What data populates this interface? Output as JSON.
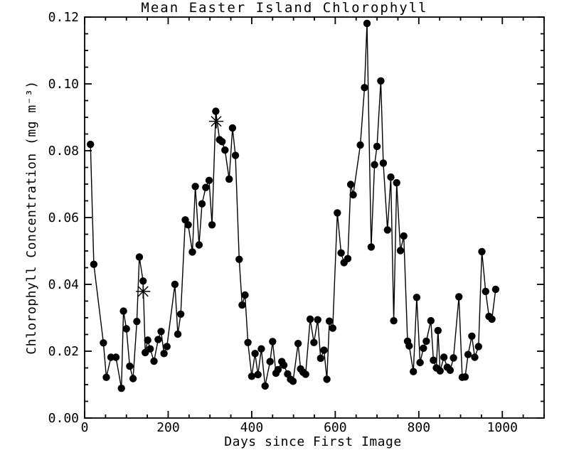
{
  "chart_data": {
    "type": "line",
    "title": "Mean Easter Island Chlorophyll",
    "xlabel": "Days since First Image",
    "ylabel": "Chlorophyll Concentration (mg m⁻³)",
    "xlim": [
      0,
      1100
    ],
    "ylim": [
      0,
      0.12
    ],
    "x_major_ticks": [
      0,
      200,
      400,
      600,
      800,
      1000
    ],
    "x_minor_step": 50,
    "y_major_ticks": [
      0,
      0.02,
      0.04,
      0.06,
      0.08,
      0.1,
      0.12
    ],
    "y_minor_step": 0.005,
    "grid": false,
    "legend": "none",
    "marker": "filled-circle",
    "marker_color": "#000000",
    "line_color": "#000000",
    "axis_color": "#000000",
    "background": "#ffffff",
    "series": [
      {
        "name": "mean-chlorophyll",
        "points": [
          [
            14,
            0.0819
          ],
          [
            22,
            0.046
          ],
          [
            45,
            0.0225
          ],
          [
            52,
            0.0122
          ],
          [
            63,
            0.0182
          ],
          [
            75,
            0.0182
          ],
          [
            88,
            0.0089
          ],
          [
            93,
            0.032
          ],
          [
            100,
            0.0267
          ],
          [
            108,
            0.0155
          ],
          [
            116,
            0.0118
          ],
          [
            125,
            0.0289
          ],
          [
            131,
            0.0482
          ],
          [
            140,
            0.041
          ],
          [
            145,
            0.0196
          ],
          [
            151,
            0.0233
          ],
          [
            157,
            0.0207
          ],
          [
            166,
            0.017
          ],
          [
            176,
            0.0235
          ],
          [
            183,
            0.0259
          ],
          [
            190,
            0.0193
          ],
          [
            197,
            0.0214
          ],
          [
            216,
            0.04
          ],
          [
            223,
            0.0251
          ],
          [
            230,
            0.0311
          ],
          [
            241,
            0.0593
          ],
          [
            248,
            0.0578
          ],
          [
            258,
            0.0497
          ],
          [
            265,
            0.0693
          ],
          [
            274,
            0.0518
          ],
          [
            281,
            0.0641
          ],
          [
            290,
            0.069
          ],
          [
            298,
            0.0711
          ],
          [
            305,
            0.0578
          ],
          [
            314,
            0.0918
          ],
          [
            323,
            0.0833
          ],
          [
            329,
            0.0827
          ],
          [
            336,
            0.0802
          ],
          [
            346,
            0.0715
          ],
          [
            354,
            0.0868
          ],
          [
            361,
            0.0786
          ],
          [
            370,
            0.0475
          ],
          [
            377,
            0.0338
          ],
          [
            384,
            0.0368
          ],
          [
            391,
            0.0226
          ],
          [
            400,
            0.0125
          ],
          [
            408,
            0.0193
          ],
          [
            415,
            0.013
          ],
          [
            423,
            0.0207
          ],
          [
            432,
            0.0096
          ],
          [
            444,
            0.0169
          ],
          [
            450,
            0.0229
          ],
          [
            458,
            0.0134
          ],
          [
            463,
            0.0145
          ],
          [
            472,
            0.0169
          ],
          [
            477,
            0.0158
          ],
          [
            486,
            0.0132
          ],
          [
            493,
            0.0116
          ],
          [
            499,
            0.011
          ],
          [
            511,
            0.0223
          ],
          [
            517,
            0.0147
          ],
          [
            523,
            0.0137
          ],
          [
            529,
            0.0131
          ],
          [
            540,
            0.0296
          ],
          [
            549,
            0.0226
          ],
          [
            558,
            0.0294
          ],
          [
            565,
            0.0179
          ],
          [
            573,
            0.0203
          ],
          [
            580,
            0.0116
          ],
          [
            586,
            0.029
          ],
          [
            594,
            0.0269
          ],
          [
            605,
            0.0614
          ],
          [
            614,
            0.0494
          ],
          [
            621,
            0.0465
          ],
          [
            630,
            0.0477
          ],
          [
            637,
            0.0699
          ],
          [
            643,
            0.0668
          ],
          [
            660,
            0.0817
          ],
          [
            670,
            0.0989
          ],
          [
            676,
            0.1181
          ],
          [
            686,
            0.0512
          ],
          [
            694,
            0.0758
          ],
          [
            700,
            0.0813
          ],
          [
            709,
            0.1009
          ],
          [
            715,
            0.0763
          ],
          [
            725,
            0.0563
          ],
          [
            733,
            0.0721
          ],
          [
            740,
            0.0291
          ],
          [
            747,
            0.0704
          ],
          [
            756,
            0.0501
          ],
          [
            764,
            0.0545
          ],
          [
            773,
            0.023
          ],
          [
            777,
            0.0216
          ],
          [
            787,
            0.0139
          ],
          [
            795,
            0.0361
          ],
          [
            803,
            0.0166
          ],
          [
            811,
            0.0209
          ],
          [
            818,
            0.023
          ],
          [
            829,
            0.0291
          ],
          [
            835,
            0.0173
          ],
          [
            842,
            0.015
          ],
          [
            846,
            0.0262
          ],
          [
            851,
            0.0141
          ],
          [
            860,
            0.0182
          ],
          [
            868,
            0.0152
          ],
          [
            875,
            0.0143
          ],
          [
            883,
            0.018
          ],
          [
            896,
            0.0363
          ],
          [
            904,
            0.0122
          ],
          [
            911,
            0.0123
          ],
          [
            918,
            0.019
          ],
          [
            927,
            0.0245
          ],
          [
            934,
            0.0182
          ],
          [
            943,
            0.0214
          ],
          [
            951,
            0.0498
          ],
          [
            960,
            0.0379
          ],
          [
            968,
            0.0304
          ],
          [
            975,
            0.0296
          ],
          [
            984,
            0.0385
          ]
        ]
      }
    ],
    "asterisk_markers": [
      [
        140,
        0.0379
      ],
      [
        315,
        0.0888
      ]
    ]
  }
}
